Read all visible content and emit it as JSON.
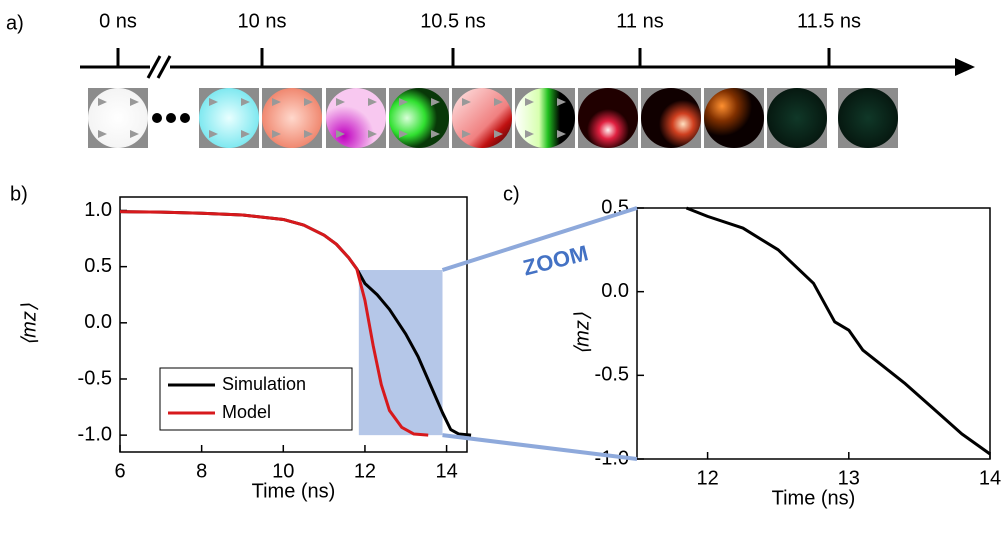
{
  "timeline": {
    "panel_label": "a)",
    "ticks": [
      "0 ns",
      "10 ns",
      "10.5 ns",
      "11 ns",
      "11.5 ns"
    ]
  },
  "annotation": "ZOOM",
  "chart_data": [
    {
      "type": "line",
      "panel_label": "b)",
      "xlabel": "Time (ns)",
      "ylabel": "⟨mz⟩",
      "xlim": [
        6,
        14.5
      ],
      "ylim": [
        -1.15,
        1.12
      ],
      "xticks": [
        6,
        8,
        10,
        12,
        14
      ],
      "yticks": [
        {
          "value": -1,
          "label": "-1.0"
        },
        {
          "value": -0.5,
          "label": "-0.5"
        },
        {
          "value": 0,
          "label": "0.0"
        },
        {
          "value": 0.5,
          "label": "0.5"
        },
        {
          "value": 1,
          "label": "1.0"
        }
      ],
      "highlight": {
        "xlim": [
          11.85,
          13.9
        ],
        "ylim": [
          -1,
          0.47
        ],
        "color": "#8ea9db"
      },
      "legend": "lower left",
      "series": [
        {
          "name": "Simulation",
          "color": "#000000",
          "x": [
            6,
            7,
            8,
            9,
            10,
            10.5,
            11,
            11.3,
            11.6,
            11.8,
            12,
            12.3,
            12.6,
            13,
            13.3,
            13.6,
            13.9,
            14.1,
            14.3,
            14.6
          ],
          "values": [
            0.99,
            0.985,
            0.975,
            0.96,
            0.92,
            0.87,
            0.78,
            0.7,
            0.58,
            0.48,
            0.35,
            0.25,
            0.12,
            -0.1,
            -0.3,
            -0.55,
            -0.8,
            -0.95,
            -0.99,
            -1.0
          ]
        },
        {
          "name": "Model",
          "color": "#d7191c",
          "x": [
            6,
            7,
            8,
            9,
            10,
            10.5,
            11,
            11.3,
            11.6,
            11.8,
            12,
            12.2,
            12.4,
            12.6,
            12.9,
            13.2,
            13.55
          ],
          "values": [
            0.99,
            0.985,
            0.975,
            0.96,
            0.92,
            0.87,
            0.78,
            0.7,
            0.58,
            0.48,
            0.2,
            -0.2,
            -0.55,
            -0.78,
            -0.93,
            -0.99,
            -1.0
          ]
        }
      ]
    },
    {
      "type": "line",
      "panel_label": "c)",
      "xlabel": "Time (ns)",
      "ylabel": "⟨mz⟩",
      "xlim": [
        11.5,
        14
      ],
      "ylim": [
        -1,
        0.5
      ],
      "xticks": [
        12,
        13,
        14
      ],
      "yticks": [
        {
          "value": -1,
          "label": "-1.0"
        },
        {
          "value": -0.5,
          "label": "-0.5"
        },
        {
          "value": 0,
          "label": "0.0"
        },
        {
          "value": 0.5,
          "label": "0.5"
        }
      ],
      "series": [
        {
          "color": "#000000",
          "x": [
            11.85,
            12,
            12.25,
            12.5,
            12.75,
            12.9,
            13,
            13.1,
            13.25,
            13.4,
            13.6,
            13.8,
            14
          ],
          "values": [
            0.5,
            0.45,
            0.38,
            0.25,
            0.05,
            -0.18,
            -0.23,
            -0.35,
            -0.45,
            -0.55,
            -0.7,
            -0.85,
            -0.97
          ]
        }
      ]
    }
  ]
}
